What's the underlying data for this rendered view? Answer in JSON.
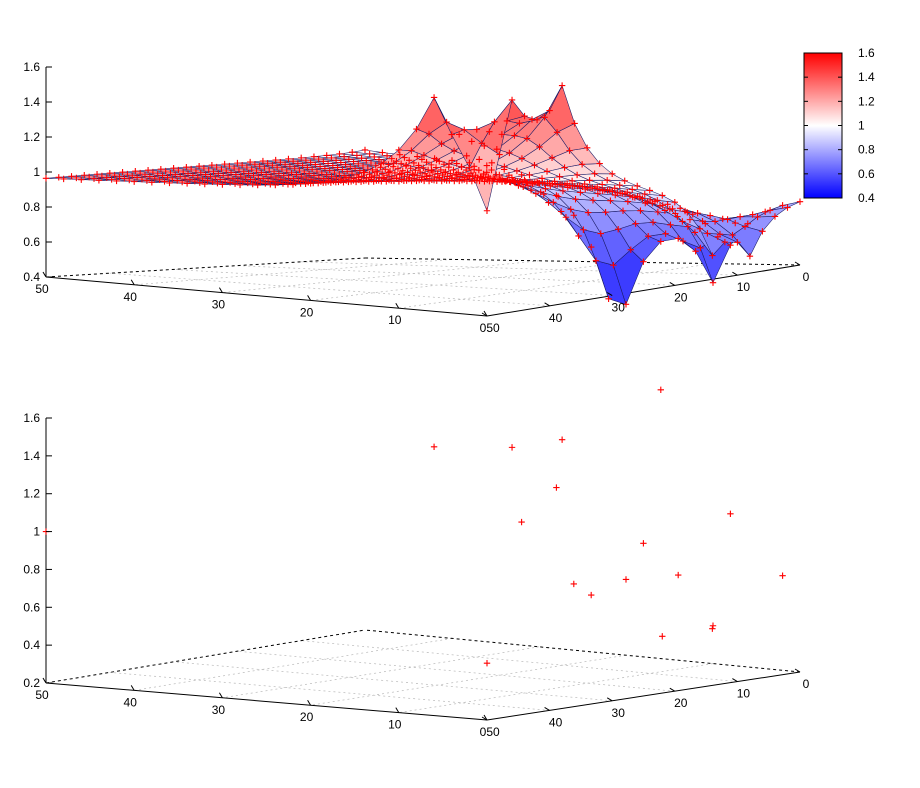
{
  "chart_data": [
    {
      "type": "surface",
      "xlim": [
        0,
        50
      ],
      "ylim": [
        0,
        50
      ],
      "zlim": [
        0.4,
        1.6
      ],
      "x_ticks": [
        "0",
        "10",
        "20",
        "30",
        "40",
        "50"
      ],
      "y_ticks": [
        "0",
        "10",
        "20",
        "30",
        "40",
        "50"
      ],
      "z_ticks": [
        "0.4",
        "0.6",
        "0.8",
        "1",
        "1.2",
        "1.4",
        "1.6"
      ],
      "colorbox": {
        "ticks": [
          "0.4",
          "0.6",
          "0.8",
          "1",
          "1.2",
          "1.4",
          "1.6"
        ],
        "range": [
          0.4,
          1.6
        ],
        "colors": [
          "#0000ff",
          "#ffffff",
          "#ff0000"
        ]
      },
      "marker": "+",
      "marker_color": "#ff0000",
      "base_level": 1.0,
      "grid_step": 2,
      "features": [
        {
          "x": 50,
          "y": 0,
          "z": 0.47,
          "kind": "dip"
        },
        {
          "x": 14,
          "y": 0,
          "z": 0.65,
          "kind": "dip"
        },
        {
          "x": 8,
          "y": 0,
          "z": 0.66,
          "kind": "dip"
        },
        {
          "x": 0,
          "y": 10,
          "z": 0.42,
          "kind": "dip"
        },
        {
          "x": 0,
          "y": 20,
          "z": 0.5,
          "kind": "dip"
        },
        {
          "x": 0,
          "y": 22,
          "z": 0.52,
          "kind": "dip"
        },
        {
          "x": 38,
          "y": 0,
          "z": 1.58,
          "kind": "peak"
        },
        {
          "x": 46,
          "y": 0,
          "z": 1.58,
          "kind": "peak"
        },
        {
          "x": 50,
          "y": 6,
          "z": 1.58,
          "kind": "peak"
        },
        {
          "x": 0,
          "y": 50,
          "z": 1.02,
          "kind": "ridge"
        }
      ]
    },
    {
      "type": "scatter3d",
      "xlim": [
        0,
        50
      ],
      "ylim": [
        0,
        50
      ],
      "zlim": [
        0.2,
        1.6
      ],
      "x_ticks": [
        "0",
        "10",
        "20",
        "30",
        "40",
        "50"
      ],
      "y_ticks": [
        "0",
        "10",
        "20",
        "30",
        "40",
        "50"
      ],
      "z_ticks": [
        "0.2",
        "0.4",
        "0.6",
        "0.8",
        "1",
        "1.2",
        "1.4",
        "1.6"
      ],
      "marker": "+",
      "marker_color": "#ff0000",
      "points": [
        {
          "x": 50,
          "y": 50,
          "z": 1.0
        },
        {
          "x": 50,
          "y": 0,
          "z": 0.5
        },
        {
          "x": 22,
          "y": 0,
          "z": 0.5
        },
        {
          "x": 14,
          "y": 0,
          "z": 0.5
        },
        {
          "x": 0,
          "y": 10,
          "z": 0.4
        },
        {
          "x": 0,
          "y": 20,
          "z": 0.6
        },
        {
          "x": 0,
          "y": 24,
          "z": 0.5
        },
        {
          "x": 38,
          "y": 0,
          "z": 1.62
        },
        {
          "x": 46,
          "y": 0,
          "z": 1.62
        },
        {
          "x": 50,
          "y": 6,
          "z": 1.62
        },
        {
          "x": 0,
          "y": 32,
          "z": 0.85
        },
        {
          "x": 0,
          "y": 28,
          "z": 1.05
        },
        {
          "x": 0,
          "y": 16,
          "z": 1.62
        },
        {
          "x": 0,
          "y": 2,
          "z": 0.7
        },
        {
          "x": 0,
          "y": 8,
          "z": 1.0
        },
        {
          "x": 0,
          "y": 14,
          "z": 0.65
        },
        {
          "x": 0,
          "y": 18,
          "z": 0.8
        },
        {
          "x": 0,
          "y": 26,
          "z": 0.55
        }
      ]
    }
  ]
}
